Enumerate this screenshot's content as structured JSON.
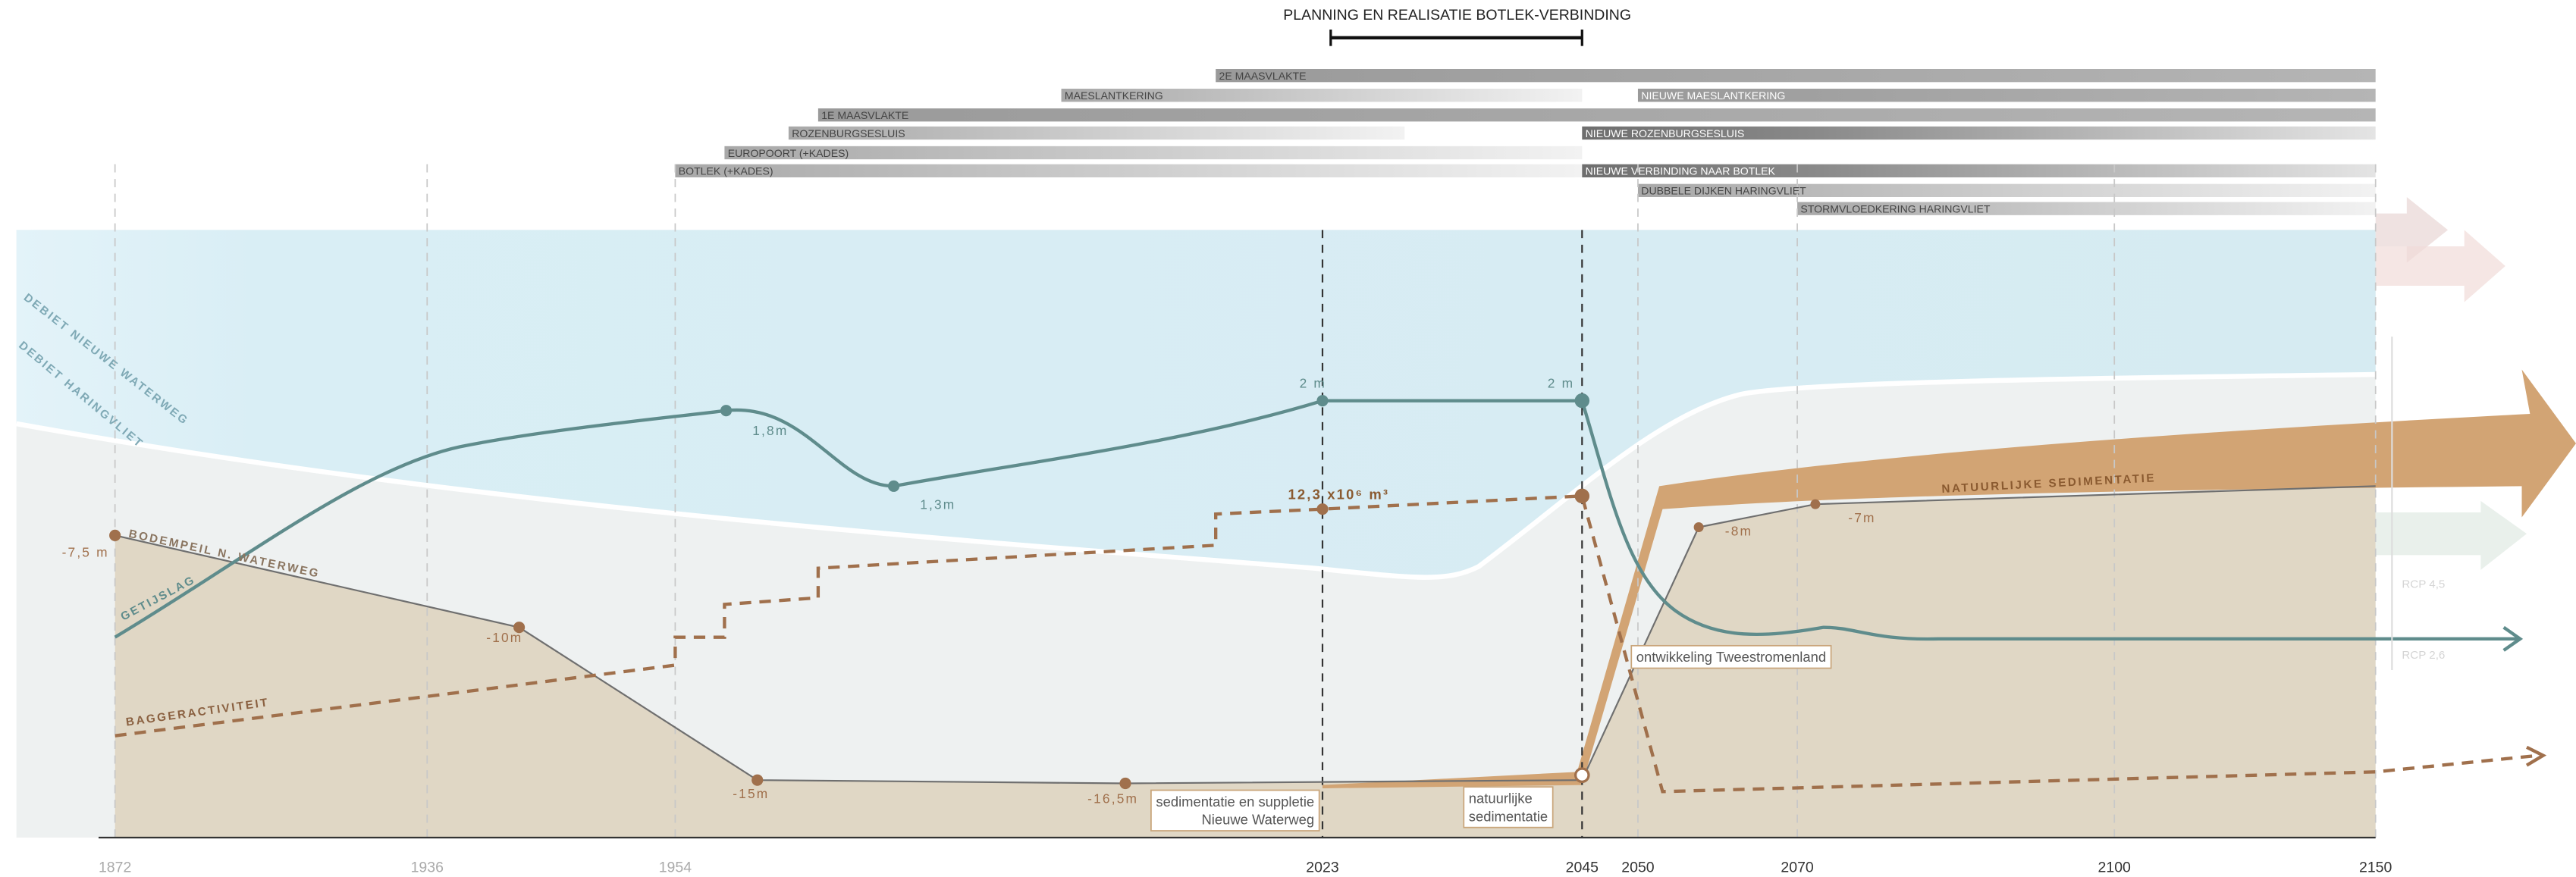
{
  "header": {
    "title": "PLANNING EN REALISATIE BOTLEK-VERBINDING"
  },
  "projects": [
    "2E MAASVLAKTE",
    "MAESLANTKERING",
    "NIEUWE MAESLANTKERING",
    "1E MAASVLAKTE",
    "ROZENBURGSESLUIS",
    "NIEUWE ROZENBURGSESLUIS",
    "EUROPOORT (+KADES)",
    "BOTLEK (+KADES)",
    "NIEUWE VERBINDING NAAR BOTLEK",
    "DUBBELE DIJKEN HARINGVLIET",
    "STORMVLOEDKERING HARINGVLIET"
  ],
  "years": [
    "1872",
    "1936",
    "1954",
    "2023",
    "2045",
    "2050",
    "2070",
    "2100",
    "2150"
  ],
  "series_labels": [
    "DEBIET NIEUWE WATERWEG",
    "DEBIET HARINGVLIET",
    "GETIJSLAG",
    "BODEMPEIL N. WATERWEG",
    "BAGGERACTIVITEIT",
    "NATUURLIJKE SEDIMENTATIE"
  ],
  "point_labels": [
    "-7,5 m",
    "-10m",
    "-15m",
    "-16,5m",
    "-8m",
    "-7m",
    "1,8m",
    "1,3m",
    "2 m",
    "2 m",
    "12,3 x10⁶ m³"
  ],
  "annotations": [
    [
      "ontwikkeling Tweestromenland"
    ],
    [
      "sedimentatie en suppletie",
      "Nieuwe Waterweg"
    ],
    [
      "natuurlijke",
      "sedimentatie"
    ]
  ],
  "scenario_labels": [
    "RCP 4,5",
    "RCP 2,6"
  ]
}
